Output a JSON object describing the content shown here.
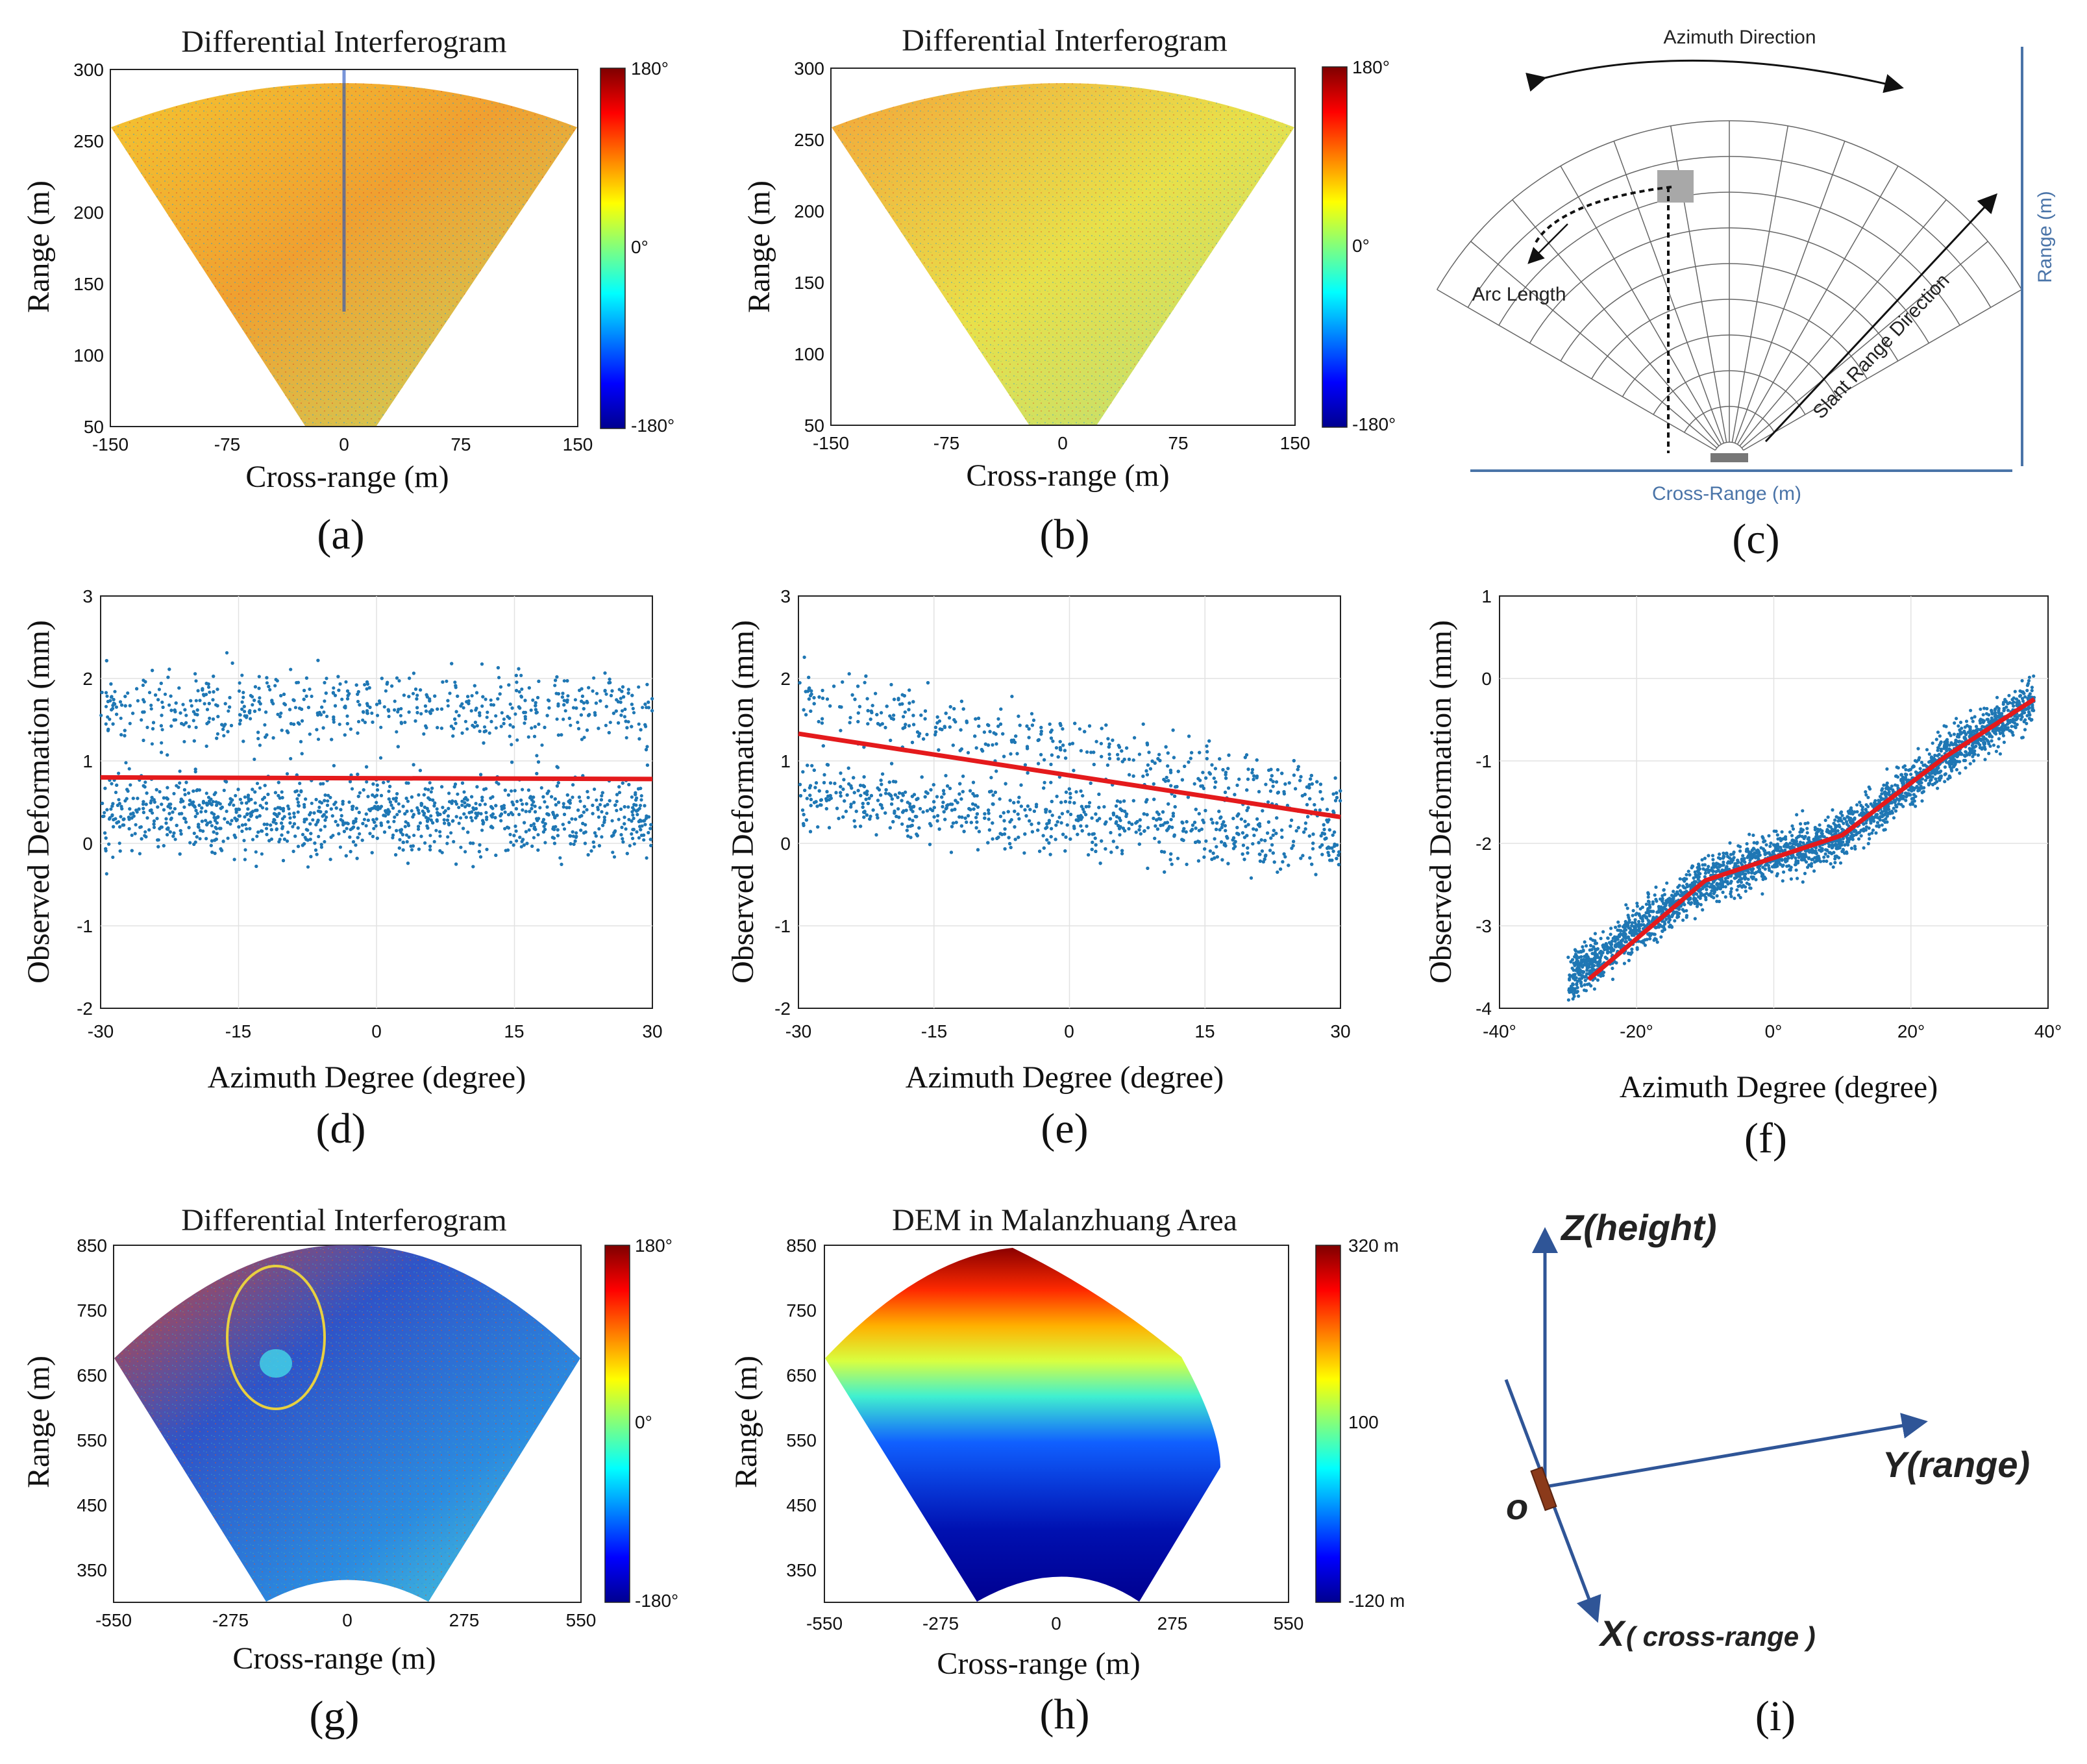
{
  "colors": {
    "scatter_blue": "#1f77b4",
    "fit_red": "#e41a1c",
    "diagram_blue": "#4a74a8",
    "arrow_blue": "#2f5597",
    "origin_marker": "#8b3a1a"
  },
  "panels": {
    "a": {
      "label": "(a)",
      "title": "Differential Interferogram",
      "xlabel": "Cross-range (m)",
      "ylabel": "Range (m)",
      "xticks": [
        "-150",
        "-75",
        "0",
        "75",
        "150"
      ],
      "yticks": [
        "50",
        "100",
        "150",
        "200",
        "250",
        "300"
      ],
      "colorbar": [
        "180°",
        "0°",
        "-180°"
      ]
    },
    "b": {
      "label": "(b)",
      "title": "Differential Interferogram",
      "xlabel": "Cross-range (m)",
      "ylabel": "Range (m)",
      "xticks": [
        "-150",
        "-75",
        "0",
        "75",
        "150"
      ],
      "yticks": [
        "50",
        "100",
        "150",
        "200",
        "250",
        "300"
      ],
      "colorbar": [
        "180°",
        "0°",
        "-180°"
      ]
    },
    "c": {
      "label": "(c)",
      "azimuth_direction": "Azimuth Direction",
      "arc_length": "Arc Length",
      "slant_range_direction": "Slant Range Direction",
      "range_axis": "Range (m)",
      "cross_range_axis": "Cross-Range (m)"
    },
    "d": {
      "label": "(d)",
      "xlabel": "Azimuth Degree (degree)",
      "ylabel": "Observed Deformation (mm)",
      "xticks": [
        "-30",
        "-15",
        "0",
        "15",
        "30"
      ],
      "yticks": [
        "-2",
        "-1",
        "0",
        "1",
        "2",
        "3"
      ]
    },
    "e": {
      "label": "(e)",
      "xlabel": "Azimuth Degree (degree)",
      "ylabel": "Observed Deformation (mm)",
      "xticks": [
        "-30",
        "-15",
        "0",
        "15",
        "30"
      ],
      "yticks": [
        "-2",
        "-1",
        "0",
        "1",
        "2",
        "3"
      ]
    },
    "f": {
      "label": "(f)",
      "xlabel": "Azimuth Degree (degree)",
      "ylabel": "Observed Deformation (mm)",
      "xticks": [
        "-40°",
        "-20°",
        "0°",
        "20°",
        "40°"
      ],
      "yticks": [
        "-4",
        "-3",
        "-2",
        "-1",
        "0",
        "1"
      ]
    },
    "g": {
      "label": "(g)",
      "title": "Differential Interferogram",
      "xlabel": "Cross-range (m)",
      "ylabel": "Range (m)",
      "xticks": [
        "-550",
        "-275",
        "0",
        "275",
        "550"
      ],
      "yticks": [
        "350",
        "450",
        "550",
        "650",
        "750",
        "850"
      ],
      "colorbar": [
        "180°",
        "0°",
        "-180°"
      ]
    },
    "h": {
      "label": "(h)",
      "title": "DEM in Malanzhuang Area",
      "xlabel": "Cross-range (m)",
      "ylabel": "Range (m)",
      "xticks": [
        "-550",
        "-275",
        "0",
        "275",
        "550"
      ],
      "yticks": [
        "350",
        "450",
        "550",
        "650",
        "750",
        "850"
      ],
      "colorbar": [
        "320 m",
        "100",
        "-120 m"
      ]
    },
    "i": {
      "label": "(i)",
      "z_axis": "Z(height)",
      "y_axis": "Y(range)",
      "x_axis_main": "X",
      "x_axis_sub": "( cross-range )",
      "origin": "o"
    }
  },
  "chart_data": [
    {
      "id": "d",
      "type": "scatter",
      "xlabel": "Azimuth Degree (degree)",
      "ylabel": "Observed Deformation (mm)",
      "xlim": [
        -30,
        30
      ],
      "ylim": [
        -2,
        3
      ],
      "grid": true,
      "series": [
        {
          "name": "observed",
          "kind": "scatter",
          "trend": [
            [
              -30,
              0.35
            ],
            [
              0,
              0.35
            ],
            [
              30,
              0.35
            ]
          ],
          "spread": 0.35,
          "upper_cluster": {
            "x": [
              -30,
              30
            ],
            "center": 1.65,
            "spread": 0.3
          }
        },
        {
          "name": "fit",
          "kind": "line",
          "x": [
            -30,
            30
          ],
          "y": [
            0.8,
            0.78
          ]
        }
      ]
    },
    {
      "id": "e",
      "type": "scatter",
      "xlabel": "Azimuth Degree (degree)",
      "ylabel": "Observed Deformation (mm)",
      "xlim": [
        -30,
        30
      ],
      "ylim": [
        -2,
        3
      ],
      "grid": true,
      "series": [
        {
          "name": "observed",
          "kind": "scatter",
          "trend": [
            [
              -30,
              0.6
            ],
            [
              0,
              0.3
            ],
            [
              30,
              0.0
            ]
          ],
          "spread": 0.3,
          "upper_cluster": {
            "x": [
              -30,
              30
            ],
            "center_start": 1.8,
            "center_end": 0.55,
            "spread": 0.25
          }
        },
        {
          "name": "fit",
          "kind": "line",
          "x": [
            -30,
            30
          ],
          "y": [
            1.33,
            0.32
          ]
        }
      ]
    },
    {
      "id": "f",
      "type": "scatter",
      "xlabel": "Azimuth Degree (degree)",
      "ylabel": "Observed Deformation (mm)",
      "xlim": [
        -40,
        40
      ],
      "ylim": [
        -4,
        1
      ],
      "grid": true,
      "series": [
        {
          "name": "observed",
          "kind": "scatter",
          "trend": [
            [
              -30,
              -3.65
            ],
            [
              -10,
              -2.45
            ],
            [
              10,
              -1.9
            ],
            [
              25,
              -0.95
            ],
            [
              38,
              -0.25
            ]
          ],
          "spread": 0.2
        },
        {
          "name": "fit",
          "kind": "line",
          "x": [
            -27,
            -10,
            10,
            25,
            38
          ],
          "y": [
            -3.65,
            -2.45,
            -1.9,
            -0.95,
            -0.25
          ]
        }
      ]
    }
  ]
}
